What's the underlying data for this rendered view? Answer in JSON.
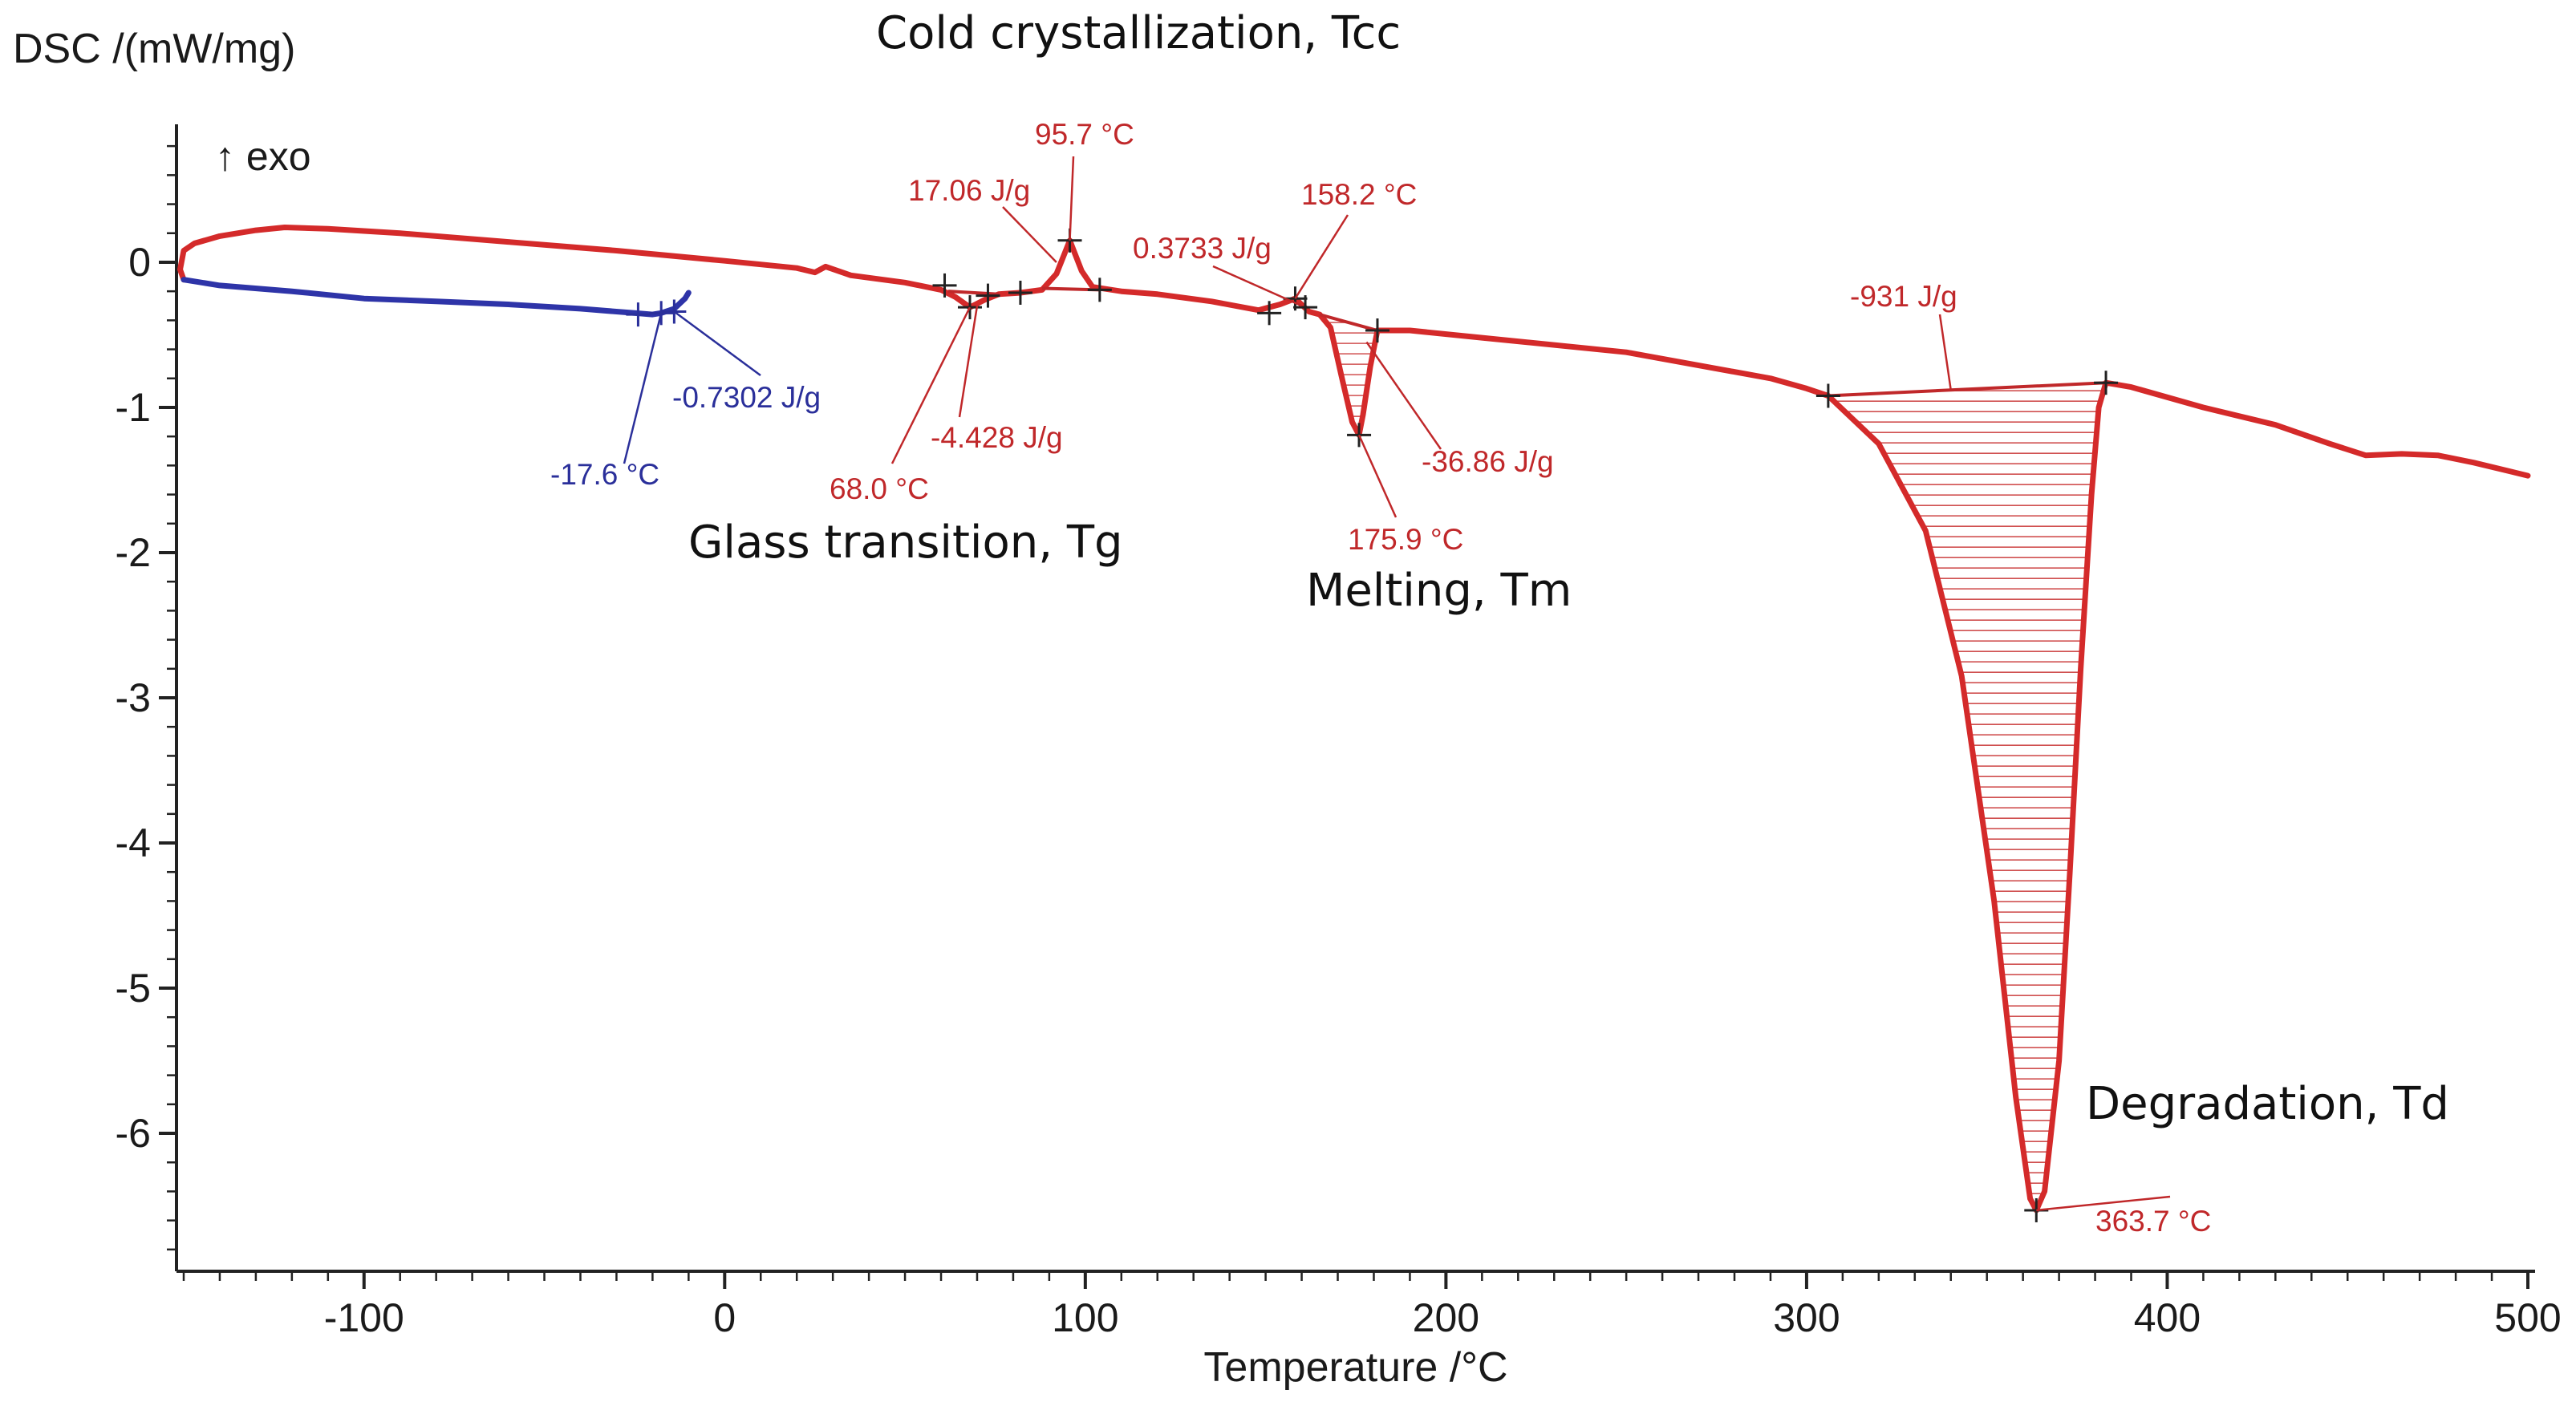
{
  "chart_data": {
    "type": "line",
    "ylabel": "DSC /(mW/mg)",
    "xlabel": "Temperature /°C",
    "exo_label": "↑ exo",
    "xlim": [
      -152,
      502
    ],
    "ylim": [
      -6.95,
      0.95
    ],
    "x_ticks": [
      -100,
      0,
      100,
      200,
      300,
      400,
      500
    ],
    "y_ticks": [
      0,
      -1,
      -2,
      -3,
      -4,
      -5,
      -6
    ],
    "series": [
      {
        "name": "heating",
        "color": "#d42a2a",
        "points": [
          [
            -150,
            -0.12
          ],
          [
            -151,
            -0.05
          ],
          [
            -150,
            0.08
          ],
          [
            -147,
            0.13
          ],
          [
            -140,
            0.18
          ],
          [
            -130,
            0.22
          ],
          [
            -122,
            0.24
          ],
          [
            -110,
            0.23
          ],
          [
            -90,
            0.2
          ],
          [
            -60,
            0.14
          ],
          [
            -30,
            0.08
          ],
          [
            0,
            0.01
          ],
          [
            20,
            -0.04
          ],
          [
            25,
            -0.07
          ],
          [
            28,
            -0.03
          ],
          [
            35,
            -0.09
          ],
          [
            50,
            -0.14
          ],
          [
            60,
            -0.19
          ],
          [
            64,
            -0.24
          ],
          [
            68,
            -0.31
          ],
          [
            72,
            -0.26
          ],
          [
            76,
            -0.22
          ],
          [
            82,
            -0.21
          ],
          [
            88,
            -0.19
          ],
          [
            92,
            -0.08
          ],
          [
            95.7,
            0.15
          ],
          [
            99,
            -0.06
          ],
          [
            102,
            -0.17
          ],
          [
            110,
            -0.2
          ],
          [
            120,
            -0.22
          ],
          [
            135,
            -0.27
          ],
          [
            148,
            -0.33
          ],
          [
            154,
            -0.29
          ],
          [
            158.2,
            -0.25
          ],
          [
            162,
            -0.34
          ],
          [
            165,
            -0.36
          ],
          [
            168,
            -0.45
          ],
          [
            171,
            -0.78
          ],
          [
            174,
            -1.1
          ],
          [
            175.9,
            -1.19
          ],
          [
            177,
            -1.05
          ],
          [
            179,
            -0.72
          ],
          [
            181,
            -0.47
          ],
          [
            190,
            -0.47
          ],
          [
            210,
            -0.52
          ],
          [
            250,
            -0.62
          ],
          [
            290,
            -0.8
          ],
          [
            300,
            -0.87
          ],
          [
            306,
            -0.92
          ],
          [
            320,
            -1.25
          ],
          [
            333,
            -1.85
          ],
          [
            343,
            -2.85
          ],
          [
            352,
            -4.4
          ],
          [
            358,
            -5.75
          ],
          [
            362,
            -6.45
          ],
          [
            363.7,
            -6.53
          ],
          [
            366,
            -6.4
          ],
          [
            370,
            -5.5
          ],
          [
            373,
            -4.2
          ],
          [
            376,
            -2.8
          ],
          [
            379,
            -1.6
          ],
          [
            381,
            -1.0
          ],
          [
            383,
            -0.83
          ],
          [
            390,
            -0.86
          ],
          [
            410,
            -1.0
          ],
          [
            430,
            -1.12
          ],
          [
            445,
            -1.25
          ],
          [
            455,
            -1.33
          ],
          [
            465,
            -1.32
          ],
          [
            475,
            -1.33
          ],
          [
            485,
            -1.38
          ],
          [
            495,
            -1.44
          ],
          [
            500,
            -1.47
          ]
        ]
      },
      {
        "name": "cooling",
        "color": "#2e34a8",
        "points": [
          [
            -150,
            -0.12
          ],
          [
            -140,
            -0.16
          ],
          [
            -120,
            -0.2
          ],
          [
            -100,
            -0.25
          ],
          [
            -80,
            -0.27
          ],
          [
            -60,
            -0.29
          ],
          [
            -40,
            -0.32
          ],
          [
            -25,
            -0.35
          ],
          [
            -20,
            -0.36
          ],
          [
            -17.6,
            -0.35
          ],
          [
            -14,
            -0.32
          ],
          [
            -11,
            -0.25
          ],
          [
            -10,
            -0.21
          ]
        ]
      }
    ],
    "annotations": [
      {
        "text": "95.7 °C",
        "color": "red"
      },
      {
        "text": "17.06 J/g",
        "color": "red"
      },
      {
        "text": "158.2 °C",
        "color": "red"
      },
      {
        "text": "0.3733 J/g",
        "color": "red"
      },
      {
        "text": "-931 J/g",
        "color": "red"
      },
      {
        "text": "-0.7302 J/g",
        "color": "blue"
      },
      {
        "text": "-17.6 °C",
        "color": "blue"
      },
      {
        "text": "-4.428 J/g",
        "color": "red"
      },
      {
        "text": "68.0 °C",
        "color": "red"
      },
      {
        "text": "-36.86 J/g",
        "color": "red"
      },
      {
        "text": "175.9 °C",
        "color": "red"
      },
      {
        "text": "363.7 °C",
        "color": "red"
      }
    ],
    "region_labels": [
      "Cold crystallization, Tcc",
      "Glass transition, Tg",
      "Melting, Tm",
      "Degradation, Td"
    ]
  }
}
